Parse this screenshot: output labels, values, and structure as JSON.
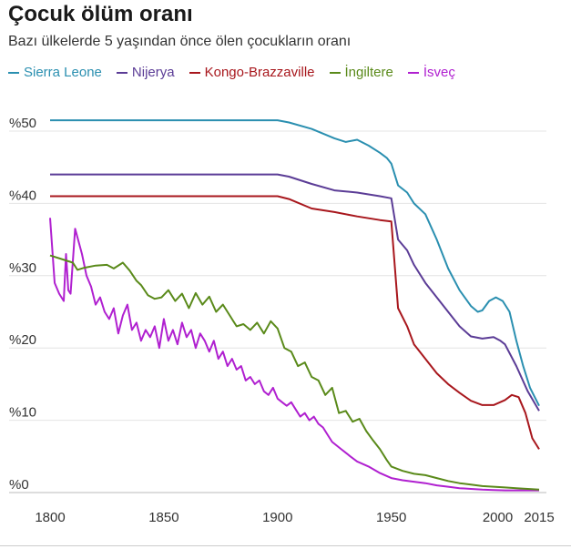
{
  "header": {
    "title": "Çocuk ölüm oranı",
    "subtitle": "Bazı ülkelerde 5 yaşından önce ölen çocukların oranı"
  },
  "chart_data": {
    "type": "line",
    "title": "Çocuk ölüm oranı",
    "subtitle": "Bazı ülkelerde 5 yaşından önce ölen çocukların oranı",
    "xlabel": "",
    "ylabel": "",
    "xlim": [
      1800,
      2015
    ],
    "ylim": [
      0,
      52
    ],
    "x_ticks": [
      1800,
      1850,
      1900,
      1950,
      2000,
      2015
    ],
    "x_tick_labels": [
      "1800",
      "1850",
      "1900",
      "1950",
      "2000",
      "2015"
    ],
    "y_ticks": [
      0,
      10,
      20,
      30,
      40,
      50
    ],
    "y_tick_labels": [
      "%0",
      "%10",
      "%20",
      "%30",
      "%40",
      "%50"
    ],
    "grid": "horizontal",
    "legend_position": "top",
    "series": [
      {
        "name": "Sierra Leone",
        "color": "#2a8fb0",
        "points": [
          [
            1800,
            51.5
          ],
          [
            1900,
            51.5
          ],
          [
            1905,
            51.2
          ],
          [
            1915,
            50.3
          ],
          [
            1925,
            49.0
          ],
          [
            1930,
            48.5
          ],
          [
            1935,
            48.8
          ],
          [
            1940,
            48.0
          ],
          [
            1945,
            47.0
          ],
          [
            1948,
            46.3
          ],
          [
            1950,
            45.5
          ],
          [
            1953,
            42.5
          ],
          [
            1957,
            41.5
          ],
          [
            1960,
            40.0
          ],
          [
            1965,
            38.5
          ],
          [
            1970,
            35.0
          ],
          [
            1975,
            31.0
          ],
          [
            1980,
            28.0
          ],
          [
            1985,
            25.8
          ],
          [
            1988,
            25.0
          ],
          [
            1990,
            25.2
          ],
          [
            1993,
            26.5
          ],
          [
            1996,
            27.0
          ],
          [
            1999,
            26.5
          ],
          [
            2002,
            25.0
          ],
          [
            2005,
            21.0
          ],
          [
            2008,
            17.5
          ],
          [
            2011,
            14.5
          ],
          [
            2015,
            12.0
          ]
        ]
      },
      {
        "name": "Nijerya",
        "color": "#5b3c96",
        "points": [
          [
            1800,
            44.0
          ],
          [
            1900,
            44.0
          ],
          [
            1905,
            43.7
          ],
          [
            1915,
            42.7
          ],
          [
            1925,
            41.8
          ],
          [
            1935,
            41.5
          ],
          [
            1945,
            41.0
          ],
          [
            1950,
            40.7
          ],
          [
            1953,
            35.0
          ],
          [
            1957,
            33.5
          ],
          [
            1960,
            31.5
          ],
          [
            1965,
            29.0
          ],
          [
            1970,
            27.0
          ],
          [
            1975,
            25.0
          ],
          [
            1980,
            23.0
          ],
          [
            1985,
            21.6
          ],
          [
            1990,
            21.3
          ],
          [
            1995,
            21.5
          ],
          [
            1998,
            21.0
          ],
          [
            2000,
            20.5
          ],
          [
            2005,
            17.5
          ],
          [
            2010,
            14.0
          ],
          [
            2015,
            11.3
          ]
        ]
      },
      {
        "name": "Kongo-Brazzaville",
        "color": "#a8171d",
        "points": [
          [
            1800,
            41.0
          ],
          [
            1900,
            41.0
          ],
          [
            1905,
            40.6
          ],
          [
            1915,
            39.3
          ],
          [
            1925,
            38.8
          ],
          [
            1935,
            38.2
          ],
          [
            1945,
            37.7
          ],
          [
            1950,
            37.5
          ],
          [
            1953,
            25.5
          ],
          [
            1957,
            23.0
          ],
          [
            1960,
            20.5
          ],
          [
            1965,
            18.5
          ],
          [
            1970,
            16.5
          ],
          [
            1975,
            15.0
          ],
          [
            1980,
            13.8
          ],
          [
            1985,
            12.7
          ],
          [
            1990,
            12.1
          ],
          [
            1995,
            12.1
          ],
          [
            2000,
            12.8
          ],
          [
            2003,
            13.5
          ],
          [
            2006,
            13.2
          ],
          [
            2009,
            11.0
          ],
          [
            2012,
            7.5
          ],
          [
            2015,
            6.0
          ]
        ]
      },
      {
        "name": "İngiltere",
        "color": "#5a8a1a",
        "points": [
          [
            1800,
            32.8
          ],
          [
            1805,
            32.3
          ],
          [
            1810,
            31.8
          ],
          [
            1812,
            30.8
          ],
          [
            1815,
            31.1
          ],
          [
            1820,
            31.4
          ],
          [
            1825,
            31.5
          ],
          [
            1828,
            31.0
          ],
          [
            1832,
            31.8
          ],
          [
            1835,
            30.7
          ],
          [
            1838,
            29.3
          ],
          [
            1840,
            28.7
          ],
          [
            1843,
            27.3
          ],
          [
            1846,
            26.8
          ],
          [
            1849,
            27.0
          ],
          [
            1852,
            28.0
          ],
          [
            1855,
            26.5
          ],
          [
            1858,
            27.5
          ],
          [
            1861,
            25.5
          ],
          [
            1864,
            27.6
          ],
          [
            1867,
            26.0
          ],
          [
            1870,
            27.1
          ],
          [
            1873,
            25.0
          ],
          [
            1876,
            26.0
          ],
          [
            1879,
            24.5
          ],
          [
            1882,
            23.0
          ],
          [
            1885,
            23.3
          ],
          [
            1888,
            22.5
          ],
          [
            1891,
            23.5
          ],
          [
            1894,
            22.0
          ],
          [
            1897,
            23.7
          ],
          [
            1900,
            22.7
          ],
          [
            1903,
            20.0
          ],
          [
            1906,
            19.5
          ],
          [
            1909,
            17.5
          ],
          [
            1912,
            18.0
          ],
          [
            1915,
            16.0
          ],
          [
            1918,
            15.5
          ],
          [
            1921,
            13.5
          ],
          [
            1924,
            14.5
          ],
          [
            1927,
            11.0
          ],
          [
            1930,
            11.3
          ],
          [
            1933,
            9.8
          ],
          [
            1936,
            10.2
          ],
          [
            1939,
            8.5
          ],
          [
            1942,
            7.2
          ],
          [
            1945,
            6.0
          ],
          [
            1948,
            4.5
          ],
          [
            1950,
            3.6
          ],
          [
            1955,
            3.0
          ],
          [
            1960,
            2.6
          ],
          [
            1965,
            2.4
          ],
          [
            1970,
            2.0
          ],
          [
            1975,
            1.6
          ],
          [
            1980,
            1.3
          ],
          [
            1985,
            1.1
          ],
          [
            1990,
            0.9
          ],
          [
            1995,
            0.8
          ],
          [
            2000,
            0.7
          ],
          [
            2005,
            0.6
          ],
          [
            2010,
            0.5
          ],
          [
            2015,
            0.4
          ]
        ]
      },
      {
        "name": "İsveç",
        "color": "#b020d0",
        "points": [
          [
            1800,
            38.0
          ],
          [
            1802,
            29.0
          ],
          [
            1804,
            27.5
          ],
          [
            1806,
            26.5
          ],
          [
            1807,
            33.0
          ],
          [
            1808,
            28.0
          ],
          [
            1809,
            27.5
          ],
          [
            1811,
            36.5
          ],
          [
            1814,
            33.0
          ],
          [
            1816,
            30.0
          ],
          [
            1818,
            28.5
          ],
          [
            1820,
            26.0
          ],
          [
            1822,
            27.0
          ],
          [
            1824,
            25.0
          ],
          [
            1826,
            24.0
          ],
          [
            1828,
            25.5
          ],
          [
            1830,
            22.0
          ],
          [
            1832,
            24.5
          ],
          [
            1834,
            26.0
          ],
          [
            1836,
            22.5
          ],
          [
            1838,
            23.5
          ],
          [
            1840,
            21.0
          ],
          [
            1842,
            22.5
          ],
          [
            1844,
            21.5
          ],
          [
            1846,
            23.0
          ],
          [
            1848,
            20.0
          ],
          [
            1850,
            24.0
          ],
          [
            1852,
            21.0
          ],
          [
            1854,
            22.5
          ],
          [
            1856,
            20.5
          ],
          [
            1858,
            23.5
          ],
          [
            1860,
            21.5
          ],
          [
            1862,
            22.5
          ],
          [
            1864,
            20.0
          ],
          [
            1866,
            22.0
          ],
          [
            1868,
            21.0
          ],
          [
            1870,
            19.5
          ],
          [
            1872,
            21.0
          ],
          [
            1874,
            18.5
          ],
          [
            1876,
            19.5
          ],
          [
            1878,
            17.5
          ],
          [
            1880,
            18.5
          ],
          [
            1882,
            17.0
          ],
          [
            1884,
            17.5
          ],
          [
            1886,
            15.5
          ],
          [
            1888,
            16.0
          ],
          [
            1890,
            15.0
          ],
          [
            1892,
            15.5
          ],
          [
            1894,
            14.0
          ],
          [
            1896,
            13.5
          ],
          [
            1898,
            14.5
          ],
          [
            1900,
            13.0
          ],
          [
            1902,
            12.5
          ],
          [
            1904,
            12.0
          ],
          [
            1906,
            12.5
          ],
          [
            1908,
            11.5
          ],
          [
            1910,
            10.5
          ],
          [
            1912,
            11.0
          ],
          [
            1914,
            10.0
          ],
          [
            1916,
            10.5
          ],
          [
            1918,
            9.5
          ],
          [
            1920,
            9.0
          ],
          [
            1922,
            8.0
          ],
          [
            1924,
            7.0
          ],
          [
            1926,
            6.5
          ],
          [
            1928,
            6.0
          ],
          [
            1930,
            5.5
          ],
          [
            1932,
            5.0
          ],
          [
            1935,
            4.3
          ],
          [
            1940,
            3.6
          ],
          [
            1945,
            2.7
          ],
          [
            1950,
            2.0
          ],
          [
            1955,
            1.7
          ],
          [
            1960,
            1.5
          ],
          [
            1965,
            1.3
          ],
          [
            1970,
            1.0
          ],
          [
            1975,
            0.8
          ],
          [
            1980,
            0.6
          ],
          [
            1985,
            0.5
          ],
          [
            1990,
            0.4
          ],
          [
            1995,
            0.35
          ],
          [
            2000,
            0.3
          ],
          [
            2005,
            0.3
          ],
          [
            2010,
            0.3
          ],
          [
            2015,
            0.3
          ]
        ]
      }
    ]
  }
}
